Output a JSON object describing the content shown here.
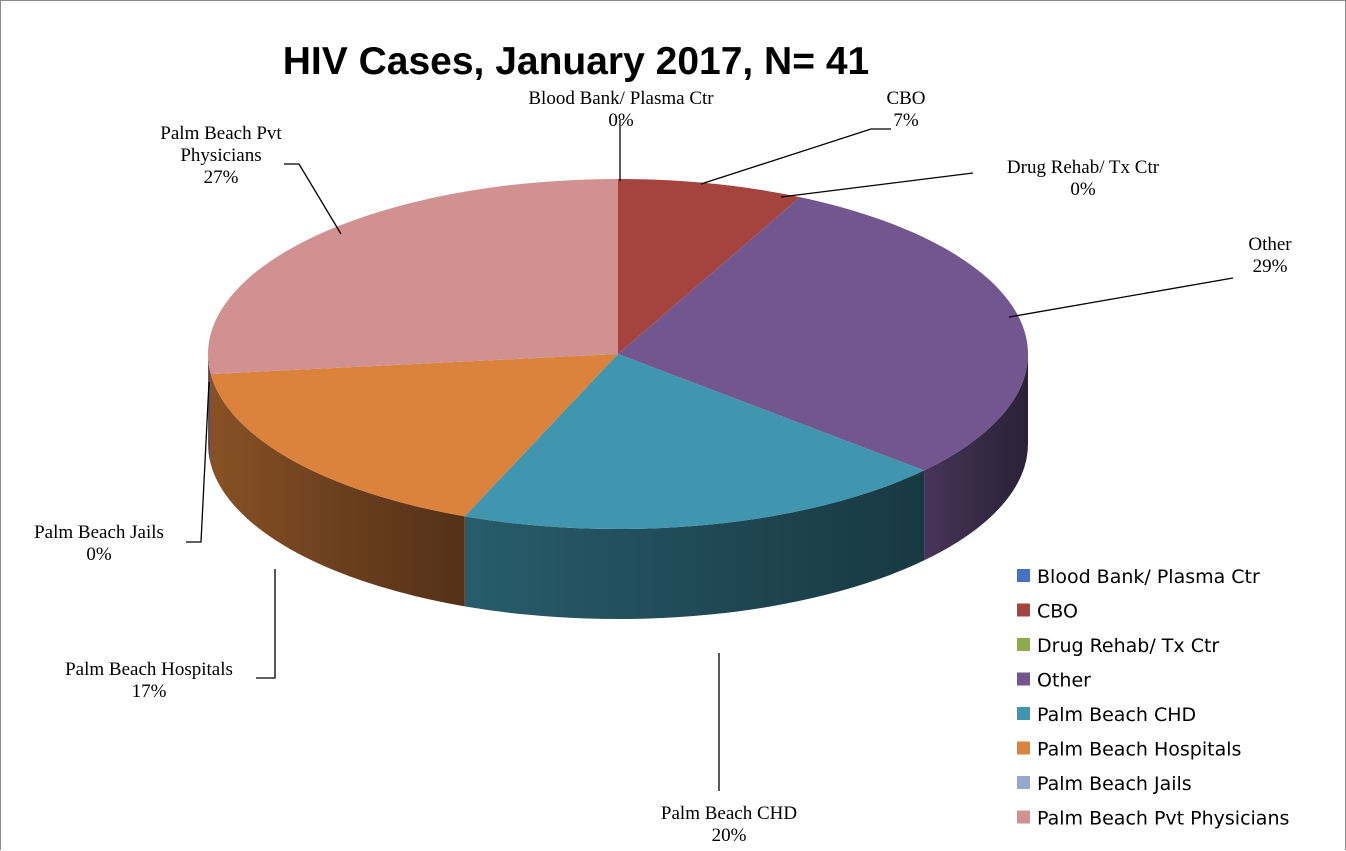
{
  "chart_data": {
    "type": "pie",
    "title": "HIV Cases, January 2017, N= 41",
    "categories": [
      "Blood Bank/ Plasma Ctr",
      "CBO",
      "Drug Rehab/ Tx Ctr",
      "Other",
      "Palm Beach CHD",
      "Palm Beach Hospitals",
      "Palm Beach Jails",
      "Palm Beach Pvt Physicians"
    ],
    "values": [
      0,
      3,
      0,
      12,
      8,
      7,
      0,
      11
    ],
    "percent_labels": [
      "0%",
      "7%",
      "0%",
      "29%",
      "20%",
      "17%",
      "0%",
      "27%"
    ],
    "colors": [
      "#4472c4",
      "#a5443f",
      "#8faa4c",
      "#725690",
      "#4096ae",
      "#db823c",
      "#92a9d0",
      "#d09190"
    ],
    "style": "3d",
    "legend": "bottom-right"
  }
}
